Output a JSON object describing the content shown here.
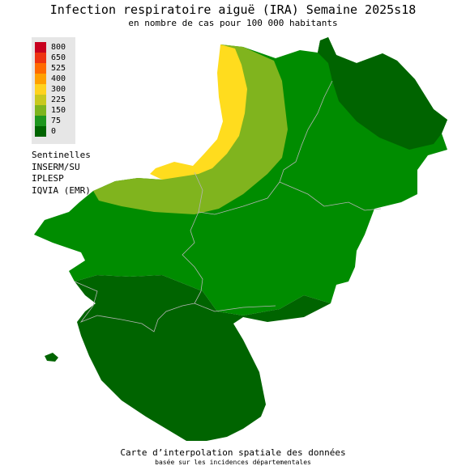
{
  "title": "Infection respiratoire aiguë (IRA) Semaine 2025s18",
  "subtitle": "en nombre de cas pour 100 000 habitants",
  "legend": [
    {
      "label": "800",
      "color": "#c8001e"
    },
    {
      "label": "650",
      "color": "#ee3311"
    },
    {
      "label": "525",
      "color": "#ff6a00"
    },
    {
      "label": "400",
      "color": "#ffa000"
    },
    {
      "label": "300",
      "color": "#ffd21e"
    },
    {
      "label": "225",
      "color": "#c8c81e"
    },
    {
      "label": "150",
      "color": "#7db41e"
    },
    {
      "label": "75",
      "color": "#1e961e"
    },
    {
      "label": "0",
      "color": "#006400"
    }
  ],
  "sources": [
    "Sentinelles",
    "INSERM/SU",
    "IPLESP",
    "IQVIA (EMR)"
  ],
  "footer": {
    "main": "Carte d’interpolation spatiale des données",
    "small": "basée sur les incidences départementales"
  }
}
